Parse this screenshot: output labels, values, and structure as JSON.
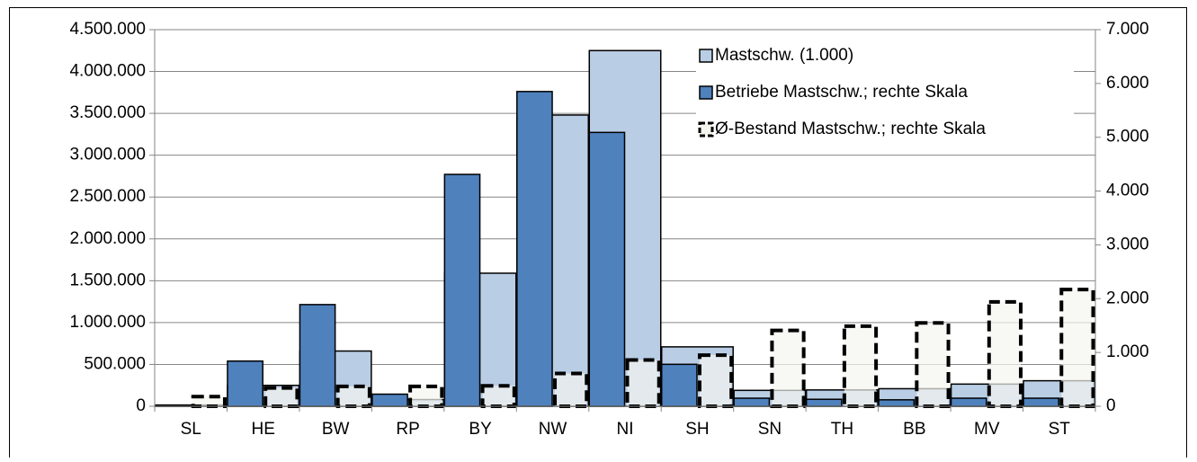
{
  "chart_data": {
    "type": "bar",
    "categories": [
      "SL",
      "HE",
      "BW",
      "RP",
      "BY",
      "NW",
      "NI",
      "SH",
      "SN",
      "TH",
      "BB",
      "MV",
      "ST"
    ],
    "series": [
      {
        "name": "Mastschw. (1.000)",
        "color": "#b9cde5",
        "axis": "y",
        "values": [
          15000,
          250000,
          660000,
          80000,
          1590000,
          3480000,
          4250000,
          710000,
          190000,
          195000,
          210000,
          265000,
          305000
        ]
      },
      {
        "name": "Betriebe Mastschw.; rechte Skala",
        "color": "#4f81bd",
        "axis": "y2",
        "values": [
          20,
          840,
          1890,
          225,
          4310,
          5850,
          5090,
          780,
          150,
          130,
          120,
          150,
          150
        ]
      },
      {
        "name": "Ø-Bestand Mastschw.; rechte Skala",
        "color": "#f5f5f0",
        "axis": "y2",
        "dashed": true,
        "values": [
          180,
          340,
          370,
          370,
          380,
          610,
          860,
          950,
          1410,
          1490,
          1550,
          1940,
          2170
        ]
      }
    ],
    "ylim": [
      0,
      4500000
    ],
    "yticks": [
      0,
      {
        "value": 500000,
        "label": "500.000"
      },
      {
        "value": 1000000,
        "label": "1.000.000"
      },
      {
        "value": 1500000,
        "label": "1.500.000"
      },
      {
        "value": 2000000,
        "label": "2.000.000"
      },
      {
        "value": 2500000,
        "label": "2.500.000"
      },
      {
        "value": 3000000,
        "label": "3.000.000"
      },
      {
        "value": 3500000,
        "label": "3.500.000"
      },
      {
        "value": 4000000,
        "label": "4.000.000"
      },
      {
        "value": 4500000,
        "label": "4.500.000"
      }
    ],
    "y2lim": [
      0,
      7000
    ],
    "y2ticks": [
      0,
      {
        "value": 1000,
        "label": "1.000"
      },
      {
        "value": 2000,
        "label": "2.000"
      },
      {
        "value": 3000,
        "label": "3.000"
      },
      {
        "value": 4000,
        "label": "4.000"
      },
      {
        "value": 5000,
        "label": "5.000"
      },
      {
        "value": 6000,
        "label": "6.000"
      },
      {
        "value": 7000,
        "label": "7.000"
      }
    ],
    "grid": true,
    "legend": "top-right"
  }
}
